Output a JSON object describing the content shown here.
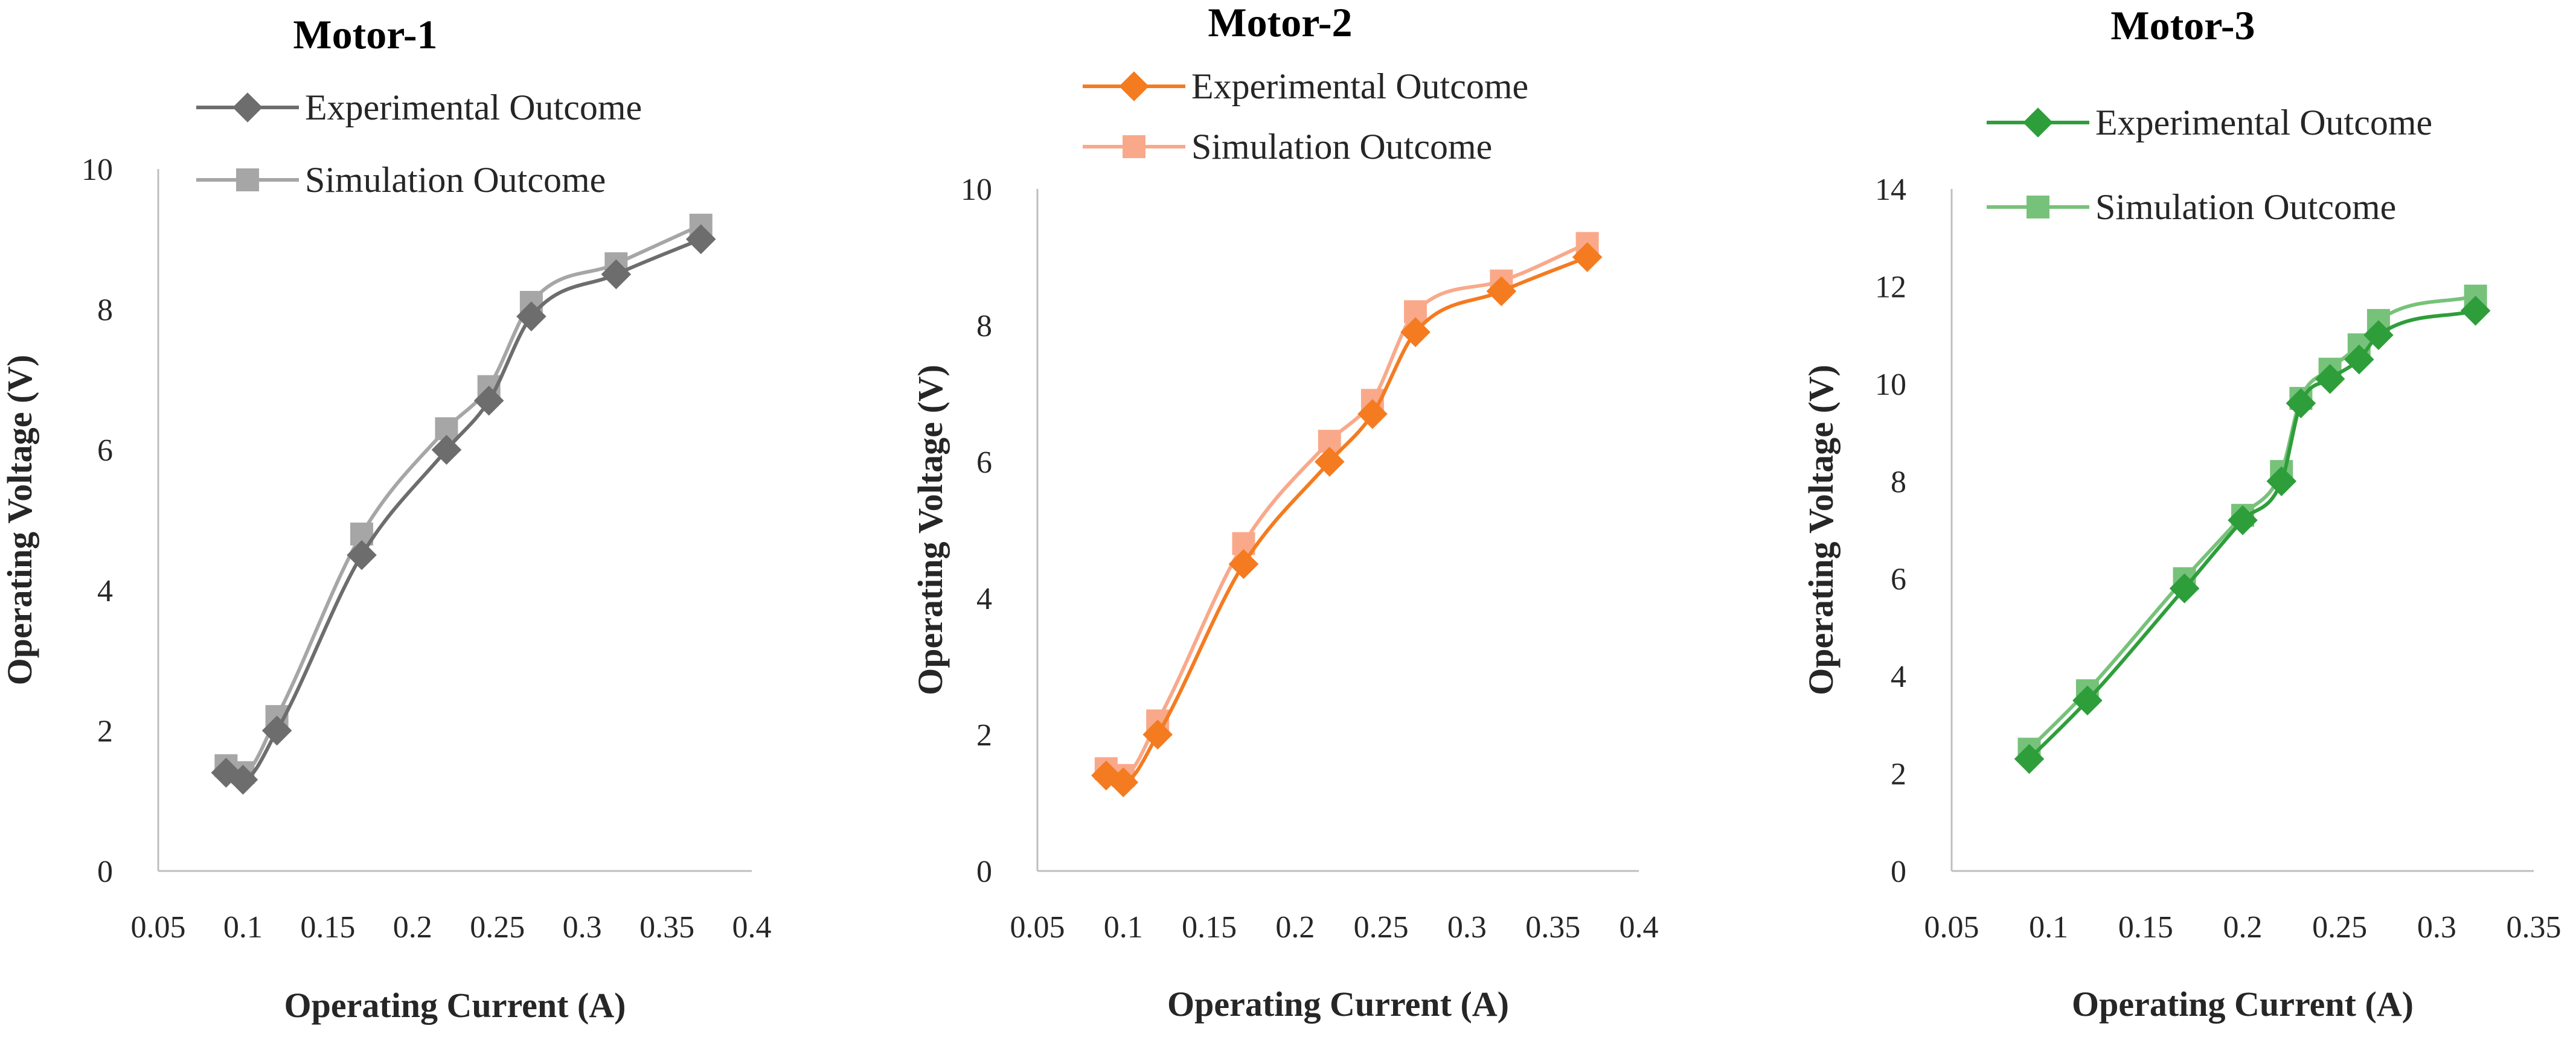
{
  "chart_data": [
    {
      "type": "line",
      "title": "Motor-1",
      "xlabel": "Operating Current (A)",
      "ylabel": "Operating Voltage (V)",
      "xlim": [
        0.05,
        0.4
      ],
      "ylim": [
        0,
        10
      ],
      "x_ticks": [
        "0.05",
        "0.1",
        "0.15",
        "0.2",
        "0.25",
        "0.3",
        "0.35",
        "0.4"
      ],
      "y_ticks": [
        "0",
        "2",
        "4",
        "6",
        "8",
        "10"
      ],
      "legend_position": "top-right",
      "series": [
        {
          "name": "Experimental Outcome",
          "marker": "diamond",
          "color": "#6d6d6d",
          "x": [
            0.09,
            0.1,
            0.12,
            0.17,
            0.22,
            0.245,
            0.27,
            0.32,
            0.37
          ],
          "y": [
            1.4,
            1.3,
            2.0,
            4.5,
            6.0,
            6.7,
            7.9,
            8.5,
            9.0
          ]
        },
        {
          "name": "Simulation Outcome",
          "marker": "square",
          "color": "#a6a6a6",
          "x": [
            0.09,
            0.1,
            0.12,
            0.17,
            0.22,
            0.245,
            0.27,
            0.32,
            0.37
          ],
          "y": [
            1.5,
            1.4,
            2.2,
            4.8,
            6.3,
            6.9,
            8.1,
            8.65,
            9.2
          ]
        }
      ]
    },
    {
      "type": "line",
      "title": "Motor-2",
      "xlabel": "Operating Current (A)",
      "ylabel": "Operating Voltage (V)",
      "xlim": [
        0.05,
        0.4
      ],
      "ylim": [
        0,
        10
      ],
      "x_ticks": [
        "0.05",
        "0.1",
        "0.15",
        "0.2",
        "0.25",
        "0.3",
        "0.35",
        "0.4"
      ],
      "y_ticks": [
        "0",
        "2",
        "4",
        "6",
        "8",
        "10"
      ],
      "legend_position": "top-right",
      "series": [
        {
          "name": "Experimental Outcome",
          "marker": "diamond",
          "color": "#f47b20",
          "x": [
            0.09,
            0.1,
            0.12,
            0.17,
            0.22,
            0.245,
            0.27,
            0.32,
            0.37
          ],
          "y": [
            1.4,
            1.3,
            2.0,
            4.5,
            6.0,
            6.7,
            7.9,
            8.5,
            9.0
          ]
        },
        {
          "name": "Simulation Outcome",
          "marker": "square",
          "color": "#f9a98a",
          "x": [
            0.09,
            0.1,
            0.12,
            0.17,
            0.22,
            0.245,
            0.27,
            0.32,
            0.37
          ],
          "y": [
            1.5,
            1.4,
            2.2,
            4.8,
            6.3,
            6.9,
            8.2,
            8.65,
            9.2
          ]
        }
      ]
    },
    {
      "type": "line",
      "title": "Motor-3",
      "xlabel": "Operating Current (A)",
      "ylabel": "Operating Voltage (V)",
      "xlim": [
        0.05,
        0.35
      ],
      "ylim": [
        0,
        14
      ],
      "x_ticks": [
        "0.05",
        "0.1",
        "0.15",
        "0.2",
        "0.25",
        "0.3",
        "0.35"
      ],
      "y_ticks": [
        "0",
        "2",
        "4",
        "6",
        "8",
        "10",
        "12",
        "14"
      ],
      "legend_position": "top-right",
      "series": [
        {
          "name": "Experimental Outcome",
          "marker": "diamond",
          "color": "#2e9e3a",
          "x": [
            0.09,
            0.12,
            0.17,
            0.2,
            0.22,
            0.23,
            0.245,
            0.26,
            0.27,
            0.32
          ],
          "y": [
            2.3,
            3.5,
            5.8,
            7.2,
            8.0,
            9.6,
            10.1,
            10.5,
            11.0,
            11.5
          ]
        },
        {
          "name": "Simulation Outcome",
          "marker": "square",
          "color": "#77c27a",
          "x": [
            0.09,
            0.12,
            0.17,
            0.2,
            0.22,
            0.23,
            0.245,
            0.26,
            0.27,
            0.32
          ],
          "y": [
            2.5,
            3.7,
            6.0,
            7.3,
            8.2,
            9.7,
            10.3,
            10.8,
            11.3,
            11.8
          ]
        }
      ]
    }
  ]
}
